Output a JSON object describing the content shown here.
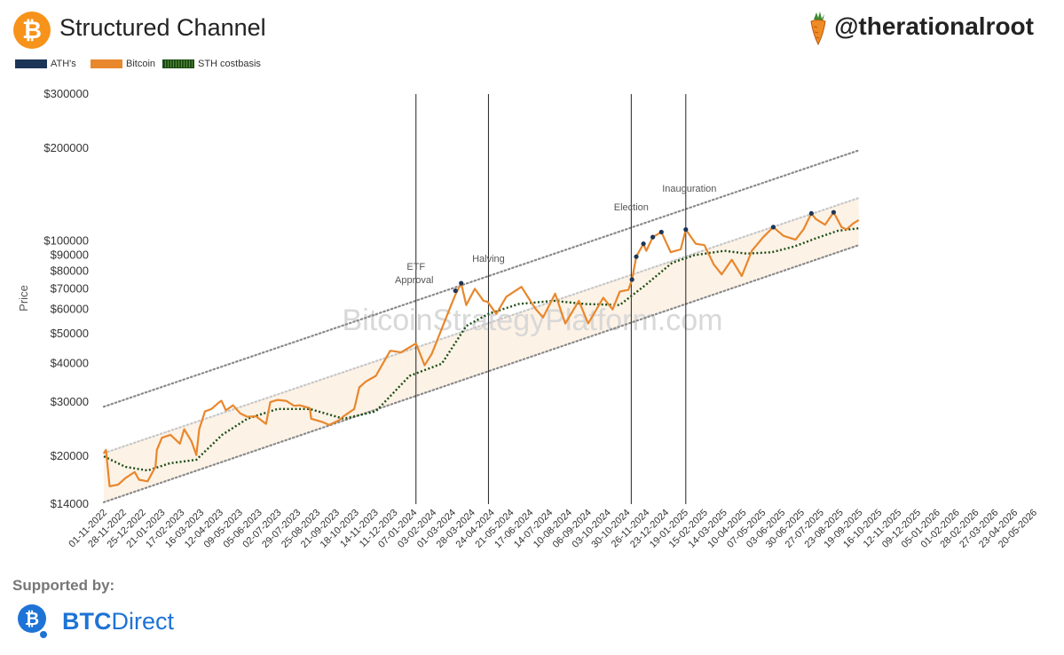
{
  "header": {
    "title": "Structured Channel",
    "handle": "@therationalroot",
    "btc_symbol": "₿"
  },
  "footer": {
    "supported_label": "Supported by:",
    "sponsor_bold": "BTC",
    "sponsor_rest": "Direct"
  },
  "colors": {
    "bitcoin": "#e8872c",
    "ath": "#1c3557",
    "sth": "#1b4d14",
    "channel": "#999999",
    "vline": "#222222",
    "band": "#fbe9d6",
    "btcdirect": "#1e73d6"
  },
  "chart_data": {
    "type": "line",
    "title": "Structured Channel",
    "xlabel": "",
    "ylabel": "Price",
    "y_scale": "log",
    "ylim": [
      14000,
      300000
    ],
    "xlim": [
      "2022-11-01",
      "2026-05-20"
    ],
    "legend_position": "top-left",
    "watermark": "BitcoinStrategyPlatform.com",
    "y_ticks": [
      14000,
      20000,
      30000,
      40000,
      50000,
      60000,
      70000,
      80000,
      90000,
      100000,
      200000,
      300000
    ],
    "y_tick_labels": [
      "$14000",
      "$20000",
      "$30000",
      "$40000",
      "$50000",
      "$60000",
      "$70000",
      "$80000",
      "$90000",
      "$100000",
      "$200000",
      "$300000"
    ],
    "x_tick_labels": [
      "01-11-2022",
      "28-11-2022",
      "25-12-2022",
      "21-01-2023",
      "17-02-2023",
      "16-03-2023",
      "12-04-2023",
      "09-05-2023",
      "05-06-2023",
      "02-07-2023",
      "29-07-2023",
      "25-08-2023",
      "21-09-2023",
      "18-10-2023",
      "14-11-2023",
      "11-12-2023",
      "07-01-2024",
      "03-02-2024",
      "01-03-2024",
      "28-03-2024",
      "24-04-2024",
      "21-05-2024",
      "17-06-2024",
      "14-07-2024",
      "10-08-2024",
      "06-09-2024",
      "03-10-2024",
      "30-10-2024",
      "26-11-2024",
      "23-12-2024",
      "19-01-2025",
      "15-02-2025",
      "14-03-2025",
      "10-04-2025",
      "07-05-2025",
      "03-06-2025",
      "30-06-2025",
      "27-07-2025",
      "23-08-2025",
      "19-09-2025",
      "16-10-2025",
      "12-11-2025",
      "09-12-2025",
      "05-01-2026",
      "01-02-2026",
      "28-02-2026",
      "27-03-2026",
      "23-04-2026",
      "20-05-2026"
    ],
    "series": [
      {
        "name": "ATH's",
        "style": "markers",
        "x": [
          "2024-03-05",
          "2024-03-13",
          "2024-11-06",
          "2024-11-12",
          "2024-11-22",
          "2024-12-05",
          "2024-12-17",
          "2025-01-20",
          "2025-05-22",
          "2025-07-14",
          "2025-08-14"
        ],
        "y": [
          69000,
          73000,
          75000,
          89000,
          98000,
          103000,
          107000,
          109000,
          111000,
          123000,
          124000
        ]
      },
      {
        "name": "Bitcoin",
        "style": "line",
        "x": [
          "2022-11-01",
          "2022-11-04",
          "2022-11-09",
          "2022-11-21",
          "2022-12-01",
          "2022-12-14",
          "2022-12-20",
          "2023-01-01",
          "2023-01-12",
          "2023-01-14",
          "2023-01-21",
          "2023-02-02",
          "2023-02-15",
          "2023-02-21",
          "2023-03-03",
          "2023-03-10",
          "2023-03-14",
          "2023-03-22",
          "2023-03-31",
          "2023-04-11",
          "2023-04-14",
          "2023-04-20",
          "2023-04-30",
          "2023-05-10",
          "2023-05-20",
          "2023-06-01",
          "2023-06-15",
          "2023-06-21",
          "2023-07-01",
          "2023-07-13",
          "2023-07-24",
          "2023-08-01",
          "2023-08-15",
          "2023-08-17",
          "2023-09-01",
          "2023-09-11",
          "2023-09-25",
          "2023-10-01",
          "2023-10-16",
          "2023-10-23",
          "2023-11-01",
          "2023-11-15",
          "2023-12-05",
          "2023-12-08",
          "2023-12-20",
          "2024-01-10",
          "2024-01-22",
          "2024-02-01",
          "2024-02-15",
          "2024-02-28",
          "2024-03-05",
          "2024-03-13",
          "2024-03-20",
          "2024-04-01",
          "2024-04-13",
          "2024-04-19",
          "2024-05-01",
          "2024-05-15",
          "2024-06-05",
          "2024-06-24",
          "2024-07-05",
          "2024-07-22",
          "2024-08-05",
          "2024-08-24",
          "2024-09-06",
          "2024-09-27",
          "2024-10-10",
          "2024-10-20",
          "2024-11-01",
          "2024-11-06",
          "2024-11-12",
          "2024-11-22",
          "2024-11-26",
          "2024-12-05",
          "2024-12-17",
          "2024-12-30",
          "2025-01-13",
          "2025-01-20",
          "2025-02-03",
          "2025-02-15",
          "2025-02-28",
          "2025-03-11",
          "2025-03-25",
          "2025-04-08",
          "2025-04-22",
          "2025-05-08",
          "2025-05-22",
          "2025-06-05",
          "2025-06-22",
          "2025-07-03",
          "2025-07-14",
          "2025-07-20",
          "2025-08-02",
          "2025-08-14",
          "2025-08-25",
          "2025-09-01",
          "2025-09-10",
          "2025-09-18"
        ],
        "y": [
          20500,
          21000,
          16000,
          16200,
          17000,
          17800,
          16800,
          16600,
          18500,
          21000,
          23000,
          23500,
          22000,
          24500,
          22400,
          20200,
          24500,
          28000,
          28500,
          30000,
          30300,
          28200,
          29300,
          27600,
          26900,
          27000,
          25500,
          30000,
          30500,
          30300,
          29200,
          29300,
          28700,
          26500,
          25900,
          25300,
          26200,
          27000,
          28500,
          33500,
          35000,
          36500,
          44000,
          44000,
          43500,
          46500,
          39500,
          43000,
          52000,
          62000,
          67000,
          73000,
          62000,
          70000,
          64000,
          63500,
          58000,
          66000,
          71000,
          60500,
          56500,
          67500,
          54000,
          64000,
          54000,
          65500,
          60000,
          68500,
          69500,
          75000,
          89000,
          98000,
          93000,
          103000,
          107000,
          92000,
          94000,
          109000,
          98000,
          97000,
          84000,
          78000,
          87000,
          77000,
          93000,
          103000,
          111000,
          104000,
          101000,
          109000,
          123000,
          118000,
          113000,
          124000,
          111000,
          109000,
          114000,
          117000
        ]
      },
      {
        "name": "STH costbasis",
        "style": "dotted",
        "x": [
          "2022-11-01",
          "2022-12-01",
          "2023-01-01",
          "2023-02-01",
          "2023-03-10",
          "2023-04-15",
          "2023-05-20",
          "2023-07-01",
          "2023-08-15",
          "2023-10-01",
          "2023-11-15",
          "2024-01-01",
          "2024-02-15",
          "2024-03-20",
          "2024-04-20",
          "2024-06-01",
          "2024-07-20",
          "2024-09-01",
          "2024-10-20",
          "2024-11-25",
          "2025-01-01",
          "2025-02-01",
          "2025-03-15",
          "2025-04-15",
          "2025-05-20",
          "2025-06-20",
          "2025-07-20",
          "2025-08-20",
          "2025-09-18"
        ],
        "y": [
          20000,
          18500,
          18000,
          19000,
          19500,
          23500,
          26500,
          28500,
          28500,
          26500,
          28000,
          36500,
          40000,
          53000,
          58000,
          62500,
          64000,
          62500,
          62000,
          72000,
          85000,
          90000,
          93000,
          91000,
          92000,
          96000,
          102000,
          108000,
          110000
        ]
      }
    ],
    "channel": {
      "upper": {
        "x": [
          "2022-11-01",
          "2025-09-18"
        ],
        "y": [
          29000,
          197000
        ]
      },
      "middle": {
        "x": [
          "2022-11-01",
          "2025-09-18"
        ],
        "y": [
          20500,
          138000
        ]
      },
      "lower": {
        "x": [
          "2022-11-01",
          "2025-09-18"
        ],
        "y": [
          14200,
          97000
        ]
      }
    },
    "events": [
      {
        "label_line1": "ETF",
        "label_line2": "Approval",
        "date": "2024-01-10"
      },
      {
        "label_line1": "Halving",
        "label_line2": "",
        "date": "2024-04-20"
      },
      {
        "label_line1": "Election",
        "label_line2": "",
        "date": "2024-11-05"
      },
      {
        "label_line1": "Inauguration",
        "label_line2": "",
        "date": "2025-01-20"
      }
    ]
  }
}
